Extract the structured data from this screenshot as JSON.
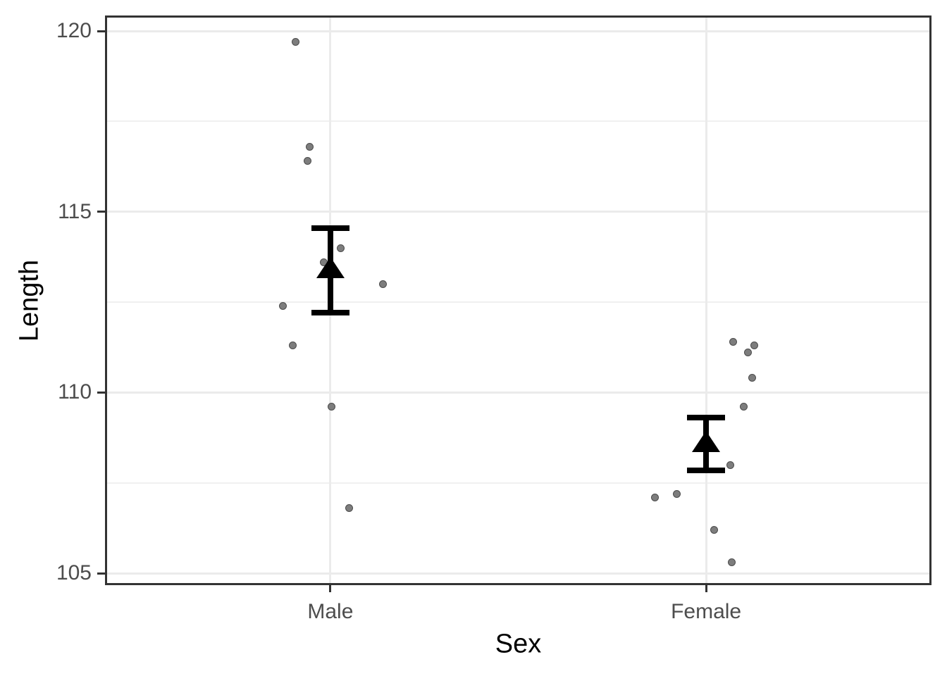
{
  "chart_data": {
    "type": "scatter",
    "title": "",
    "xlabel": "Sex",
    "ylabel": "Length",
    "categories": [
      "Male",
      "Female"
    ],
    "axis": {
      "ylim": [
        104.67,
        120.43
      ],
      "y_major_ticks": [
        105,
        110,
        115,
        120
      ],
      "y_minor_gridlines": [
        107.5,
        112.5,
        117.5
      ],
      "grid": "on",
      "legend": "none"
    },
    "series": [
      {
        "name": "Male",
        "points": [
          {
            "jitter_dx": -49,
            "y": 119.7
          },
          {
            "jitter_dx": -29,
            "y": 116.8
          },
          {
            "jitter_dx": -32,
            "y": 116.4
          },
          {
            "jitter_dx": 15,
            "y": 114.0
          },
          {
            "jitter_dx": -9,
            "y": 113.6
          },
          {
            "jitter_dx": 75,
            "y": 113.0
          },
          {
            "jitter_dx": -67,
            "y": 112.4
          },
          {
            "jitter_dx": -53,
            "y": 111.3
          },
          {
            "jitter_dx": 2,
            "y": 109.6
          },
          {
            "jitter_dx": 27,
            "y": 106.8
          }
        ]
      },
      {
        "name": "Female",
        "points": [
          {
            "jitter_dx": 38,
            "y": 111.4
          },
          {
            "jitter_dx": 68,
            "y": 111.3
          },
          {
            "jitter_dx": 59,
            "y": 111.1
          },
          {
            "jitter_dx": 65,
            "y": 110.4
          },
          {
            "jitter_dx": 53,
            "y": 109.6
          },
          {
            "jitter_dx": 34,
            "y": 108.0
          },
          {
            "jitter_dx": -42,
            "y": 107.2
          },
          {
            "jitter_dx": -73,
            "y": 107.1
          },
          {
            "jitter_dx": 11,
            "y": 106.2
          },
          {
            "jitter_dx": 36,
            "y": 105.3
          }
        ]
      }
    ],
    "summary_stats": [
      {
        "category": "Male",
        "mean": 113.45,
        "lower": 112.2,
        "upper": 114.55
      },
      {
        "category": "Female",
        "mean": 108.65,
        "lower": 107.85,
        "upper": 109.3
      }
    ],
    "colors": {
      "panel_border": "#333333",
      "grid_major": "#ebebeb",
      "grid_minor": "#f0f0f0",
      "tick_label": "#4d4d4d",
      "axis_title": "#000000",
      "point_fill": "#7d7d7d",
      "point_stroke": "#4c4c4c",
      "summary_marker": "#000000"
    }
  }
}
